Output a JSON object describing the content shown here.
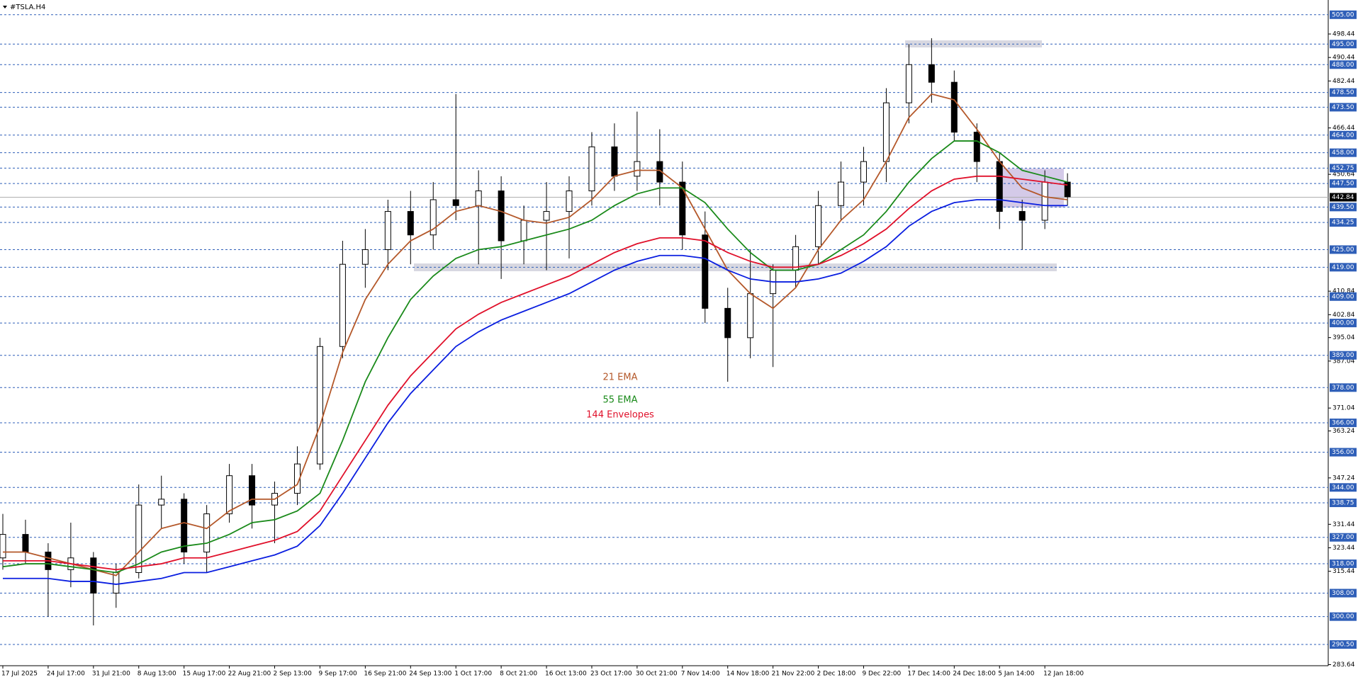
{
  "chart_data": {
    "type": "candlestick",
    "title": "#TSLA.H4",
    "categories": [
      "17 Jul 2025",
      null,
      "24 Jul 17:00",
      null,
      "31 Jul 21:00",
      null,
      "8 Aug 13:00",
      null,
      "15 Aug 17:00",
      null,
      "22 Aug 21:00",
      null,
      "2 Sep 13:00",
      null,
      "9 Sep 17:00",
      null,
      "16 Sep 21:00",
      null,
      "24 Sep 13:00",
      null,
      "1 Oct 17:00",
      null,
      "8 Oct 21:00",
      null,
      "16 Oct 13:00",
      null,
      "23 Oct 17:00",
      null,
      "30 Oct 21:00",
      null,
      "7 Nov 14:00",
      null,
      "14 Nov 18:00",
      null,
      "21 Nov 22:00",
      null,
      "2 Dec 18:00",
      null,
      "9 Dec 22:00",
      null,
      "17 Dec 14:00",
      null,
      "24 Dec 18:00",
      null,
      "5 Jan 14:00",
      null,
      "12 Jan 18:00",
      null
    ],
    "open": [
      320,
      328,
      322,
      316,
      320,
      308,
      315,
      338,
      340,
      322,
      335,
      348,
      338,
      342,
      352,
      392,
      420,
      425,
      438,
      430,
      442,
      440,
      445,
      428,
      435,
      438,
      445,
      460,
      450,
      455,
      448,
      430,
      405,
      395,
      410,
      418,
      426,
      440,
      448,
      455,
      475,
      488,
      482,
      465,
      455,
      438,
      435,
      448
    ],
    "high": [
      335,
      333,
      325,
      332,
      322,
      318,
      345,
      348,
      342,
      338,
      352,
      352,
      346,
      358,
      395,
      428,
      432,
      442,
      445,
      448,
      478,
      452,
      450,
      440,
      448,
      450,
      465,
      468,
      472,
      466,
      455,
      438,
      412,
      425,
      420,
      430,
      445,
      455,
      460,
      480,
      495,
      497,
      486,
      468,
      458,
      442,
      452,
      451
    ],
    "low": [
      316,
      318,
      300,
      310,
      297,
      303,
      313,
      330,
      318,
      315,
      332,
      330,
      325,
      338,
      350,
      388,
      412,
      418,
      420,
      425,
      435,
      420,
      415,
      420,
      418,
      422,
      440,
      445,
      445,
      440,
      425,
      400,
      380,
      388,
      385,
      412,
      420,
      435,
      440,
      448,
      468,
      475,
      462,
      448,
      432,
      425,
      432,
      440
    ],
    "close": [
      328,
      322,
      316,
      320,
      308,
      315,
      338,
      340,
      322,
      335,
      348,
      338,
      342,
      352,
      392,
      420,
      425,
      438,
      430,
      442,
      440,
      445,
      428,
      435,
      438,
      445,
      460,
      450,
      455,
      448,
      430,
      405,
      395,
      410,
      418,
      426,
      440,
      448,
      455,
      475,
      488,
      482,
      465,
      455,
      438,
      435,
      448,
      443
    ],
    "series": [
      {
        "name": "21 EMA",
        "color": "#b4582a",
        "values": [
          322,
          322,
          320,
          318,
          316,
          314,
          322,
          330,
          332,
          330,
          336,
          340,
          340,
          345,
          365,
          390,
          408,
          420,
          428,
          432,
          438,
          440,
          438,
          435,
          434,
          436,
          442,
          450,
          452,
          452,
          446,
          432,
          418,
          410,
          405,
          412,
          425,
          435,
          442,
          455,
          470,
          478,
          476,
          466,
          455,
          446,
          443,
          442
        ]
      },
      {
        "name": "55 EMA",
        "color": "#1a8a1a",
        "values": [
          317,
          318,
          318,
          317,
          316,
          315,
          318,
          322,
          324,
          325,
          328,
          332,
          333,
          336,
          342,
          360,
          380,
          395,
          408,
          416,
          422,
          425,
          426,
          428,
          430,
          432,
          435,
          440,
          444,
          446,
          446,
          441,
          432,
          424,
          418,
          418,
          420,
          425,
          430,
          438,
          448,
          456,
          462,
          462,
          458,
          452,
          450,
          448
        ]
      },
      {
        "name": "144 Envelopes",
        "color": "#e0102a",
        "values": [
          319,
          319,
          319,
          318,
          317,
          316,
          317,
          318,
          320,
          320,
          322,
          324,
          326,
          329,
          336,
          348,
          360,
          372,
          382,
          390,
          398,
          403,
          407,
          410,
          413,
          416,
          420,
          424,
          427,
          429,
          429,
          428,
          424,
          421,
          419,
          419,
          420,
          423,
          427,
          432,
          439,
          445,
          449,
          450,
          450,
          449,
          448,
          447
        ]
      },
      {
        "color": "#0a1ee0",
        "values": [
          313,
          313,
          313,
          312,
          312,
          311,
          312,
          313,
          315,
          315,
          317,
          319,
          321,
          324,
          331,
          342,
          354,
          366,
          376,
          384,
          392,
          397,
          401,
          404,
          407,
          410,
          414,
          418,
          421,
          423,
          423,
          422,
          418,
          415,
          414,
          414,
          415,
          417,
          421,
          426,
          433,
          438,
          441,
          442,
          442,
          441,
          440,
          440
        ]
      }
    ],
    "ylim": [
      283.64,
      508.57
    ],
    "yticks": [
      498.44,
      490.44,
      482.44,
      466.44,
      450.64,
      410.84,
      402.84,
      395.04,
      387.04,
      371.04,
      363.24,
      347.24,
      331.44,
      323.44,
      315.44,
      283.64
    ],
    "levels": [
      {
        "value": 505,
        "label": "505.00"
      },
      {
        "value": 495,
        "label": "495.00"
      },
      {
        "value": 488,
        "label": "488.00"
      },
      {
        "value": 478.5,
        "label": "478.50"
      },
      {
        "value": 473.5,
        "label": "473.50"
      },
      {
        "value": 464,
        "label": "464.00"
      },
      {
        "value": 458,
        "label": "458.00"
      },
      {
        "value": 452.75,
        "label": "452.75"
      },
      {
        "value": 447.5,
        "label": "447.50"
      },
      {
        "value": 439.5,
        "label": "439.50"
      },
      {
        "value": 434.25,
        "label": "434.25"
      },
      {
        "value": 425,
        "label": "425.00"
      },
      {
        "value": 419,
        "label": "419.00"
      },
      {
        "value": 409,
        "label": "409.00"
      },
      {
        "value": 400,
        "label": "400.00"
      },
      {
        "value": 389,
        "label": "389.00"
      },
      {
        "value": 378,
        "label": "378.00"
      },
      {
        "value": 366,
        "label": "366.00"
      },
      {
        "value": 356,
        "label": "356.00"
      },
      {
        "value": 344,
        "label": "344.00"
      },
      {
        "value": 338.75,
        "label": "338.75"
      },
      {
        "value": 327,
        "label": "327.00"
      },
      {
        "value": 318,
        "label": "318.00"
      },
      {
        "value": 308,
        "label": "308.00"
      },
      {
        "value": 300,
        "label": "300.00"
      },
      {
        "value": 290.5,
        "label": "290.50"
      }
    ],
    "last_price": 442.84,
    "level_color": "#2f5fb8"
  }
}
